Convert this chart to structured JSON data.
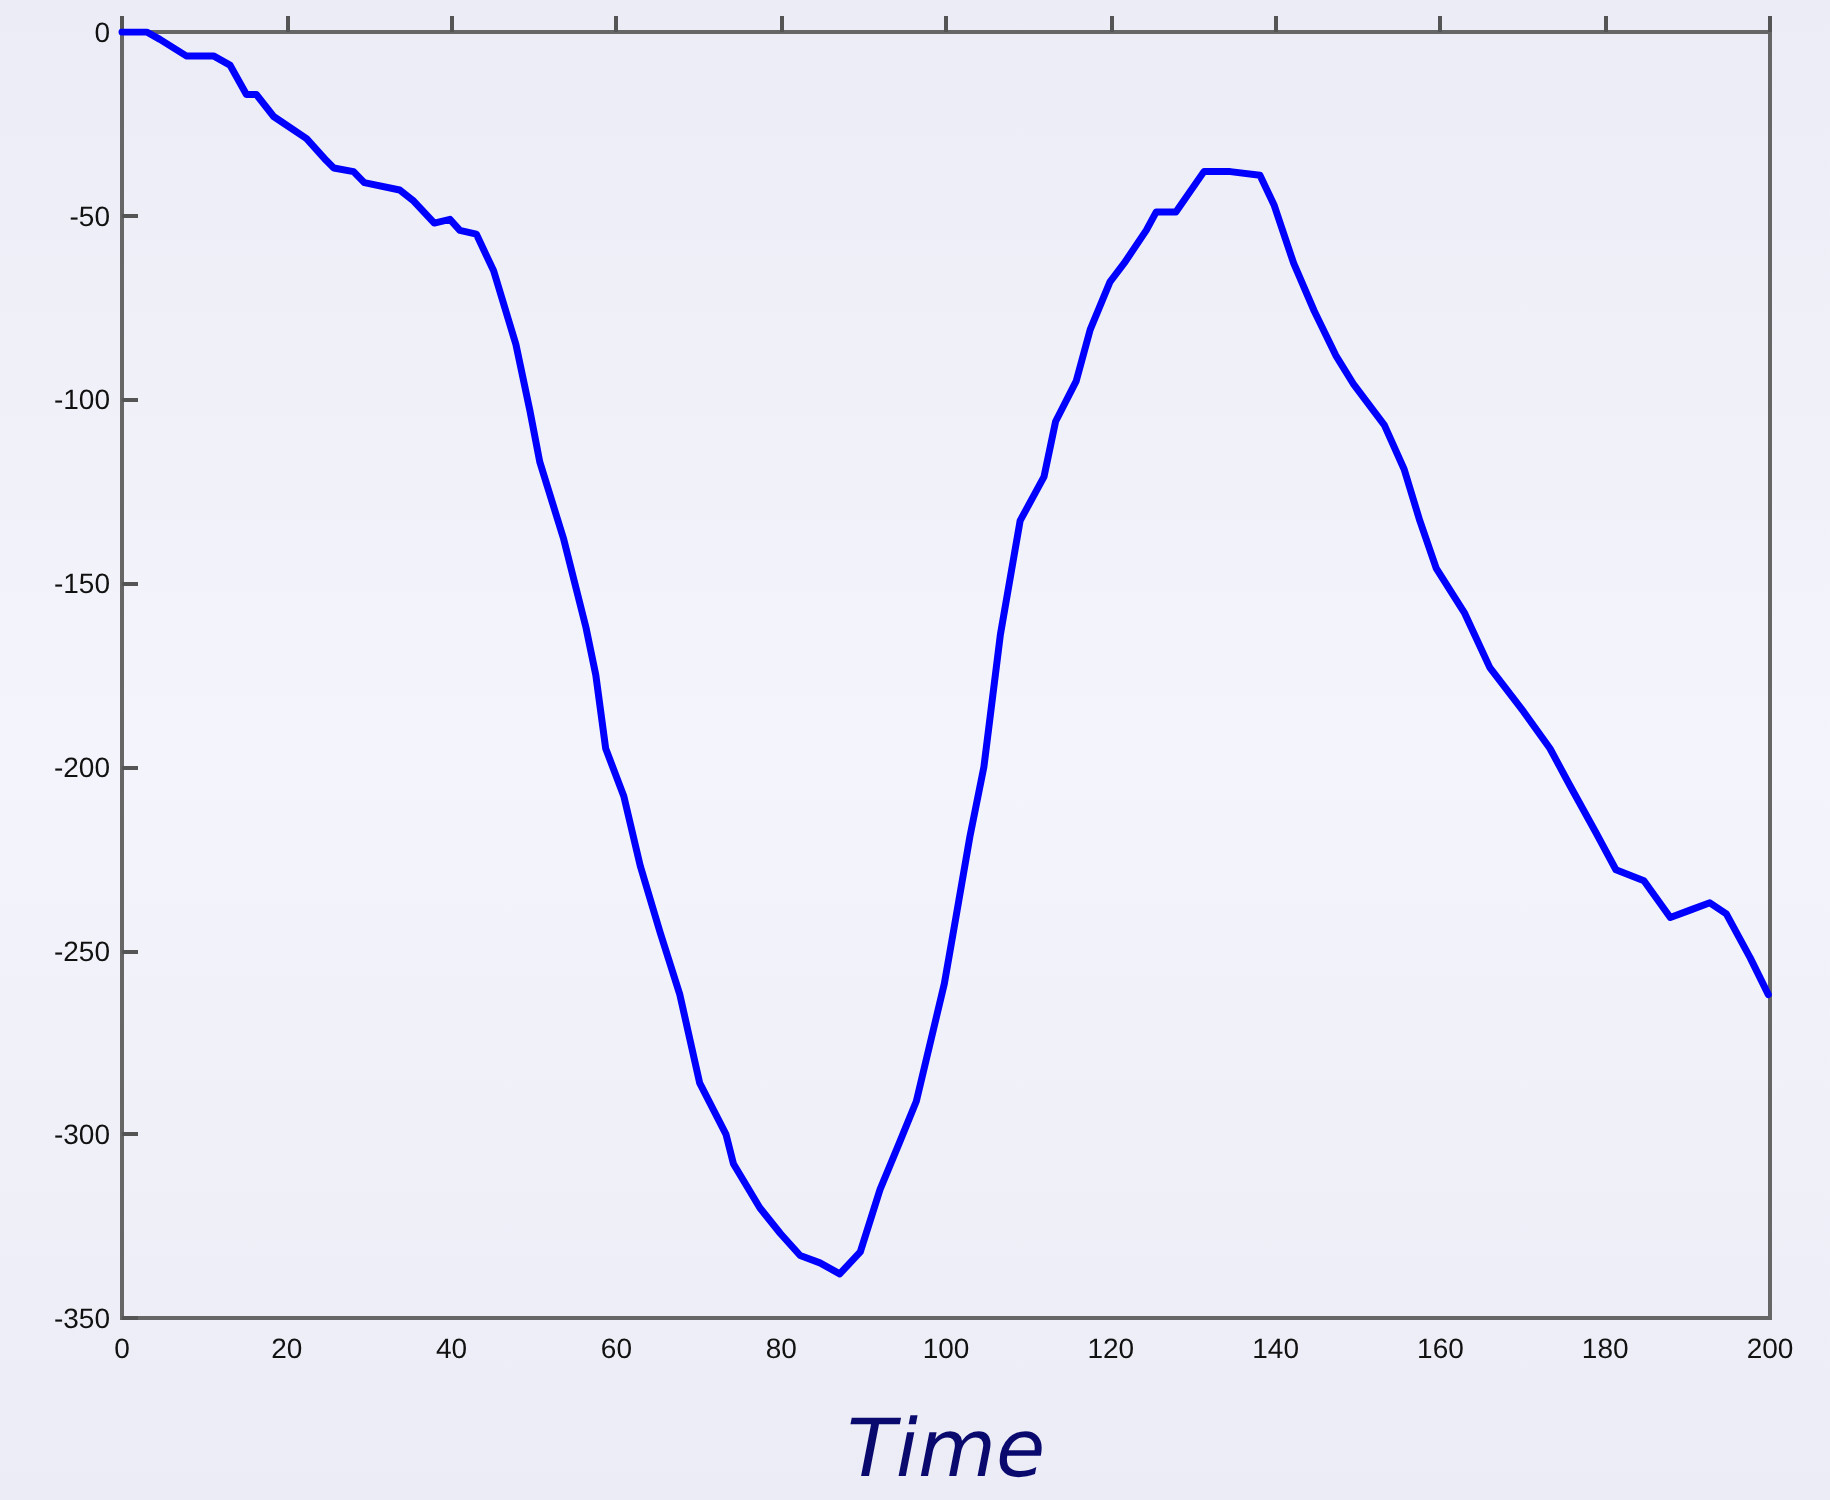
{
  "chart_data": {
    "type": "line",
    "xlabel": "Time",
    "xlim": [
      0,
      200
    ],
    "xticks": [
      0,
      20,
      40,
      60,
      80,
      100,
      120,
      140,
      160,
      180,
      200
    ],
    "ylim": [
      -350,
      0
    ],
    "yticks": [
      -350,
      -300,
      -250,
      -200,
      -150,
      -100,
      -50,
      0
    ],
    "grid": false,
    "marker": "none",
    "line_style": "solid",
    "series": [
      {
        "color": "#0000ff",
        "x": [
          0,
          3,
          4.6,
          7.8,
          11.1,
          13.1,
          15.1,
          16.3,
          18.4,
          22.4,
          24.8,
          25.7,
          28.1,
          29.4,
          33.7,
          35.4,
          37.9,
          39.8,
          41,
          43,
          45.1,
          47.8,
          49.5,
          50.7,
          53.6,
          56.3,
          57.5,
          58.7,
          60.9,
          62.9,
          65.3,
          67.7,
          70.1,
          73.3,
          74.2,
          77.4,
          79.9,
          82.3,
          84.7,
          87.1,
          89.6,
          92,
          94.4,
          96.4,
          99.8,
          101.2,
          102.9,
          104.6,
          106.6,
          108.3,
          109,
          111.9,
          113.3,
          115.8,
          117.5,
          119.9,
          121.6,
          124.3,
          125.5,
          127.9,
          131.3,
          134.5,
          138.1,
          139.8,
          142.2,
          144.7,
          147.3,
          149.5,
          153.2,
          155.6,
          157.5,
          159.5,
          162.9,
          166,
          170.1,
          173.3,
          175.7,
          178.9,
          181.3,
          184.7,
          187.9,
          190.3,
          192.7,
          194.7,
          197.6,
          199.8
        ],
        "values": [
          0,
          0,
          -2,
          -6.5,
          -6.5,
          -9,
          -17,
          -17,
          -23,
          -29,
          -35,
          -37,
          -38,
          -41,
          -43,
          -46,
          -52,
          -51,
          -54,
          -55,
          -65,
          -85,
          -103,
          -117,
          -138,
          -162,
          -175,
          -195,
          -208,
          -227,
          -245,
          -262,
          -286,
          -300,
          -308,
          -320,
          -327,
          -333,
          -335,
          -338,
          -332,
          -315,
          -302,
          -291,
          -259,
          -241,
          -219,
          -200,
          -164,
          -142,
          -133,
          -121,
          -106,
          -95,
          -81,
          -68,
          -63,
          -54,
          -49,
          -49,
          -38,
          -38,
          -39,
          -47,
          -63,
          -76,
          -88,
          -96,
          -107,
          -119,
          -133,
          -146,
          -158,
          -173,
          -185,
          -195,
          -205,
          -218,
          -228,
          -231,
          -241,
          -239,
          -237,
          -240,
          -252,
          -262
        ]
      }
    ]
  }
}
